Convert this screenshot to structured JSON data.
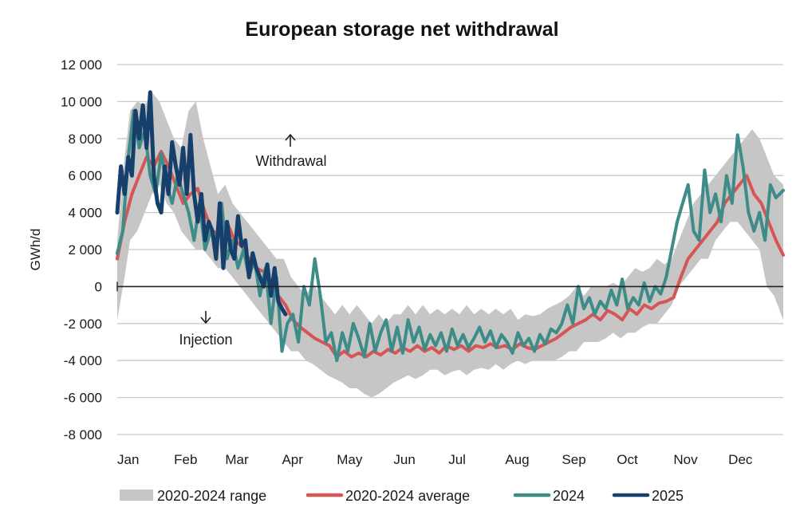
{
  "chart_data": {
    "type": "line",
    "title": "European storage net withdrawal",
    "ylabel": "GWh/d",
    "xlabel": "",
    "ylim": [
      -8000,
      12000
    ],
    "yticks": [
      12000,
      10000,
      8000,
      6000,
      4000,
      2000,
      0,
      -2000,
      -4000,
      -6000,
      -8000
    ],
    "ytick_labels": [
      "12 000",
      "10 000",
      "8 000",
      "6 000",
      "4 000",
      "2 000",
      "0",
      "-2 000",
      "-4 000",
      "-6 000",
      "-8 000"
    ],
    "x_unit": "day of year",
    "xlim": [
      1,
      365
    ],
    "months": [
      {
        "label": "Jan",
        "day": 1
      },
      {
        "label": "Feb",
        "day": 32
      },
      {
        "label": "Mar",
        "day": 60
      },
      {
        "label": "Apr",
        "day": 91
      },
      {
        "label": "May",
        "day": 121
      },
      {
        "label": "Jun",
        "day": 152
      },
      {
        "label": "Jul",
        "day": 182
      },
      {
        "label": "Aug",
        "day": 213
      },
      {
        "label": "Sep",
        "day": 244
      },
      {
        "label": "Oct",
        "day": 274
      },
      {
        "label": "Nov",
        "day": 305
      },
      {
        "label": "Dec",
        "day": 335
      }
    ],
    "grid": true,
    "legend_position": "bottom",
    "annotations": [
      {
        "text": "Withdrawal",
        "arrow": "up"
      },
      {
        "text": "Injection",
        "arrow": "down"
      }
    ],
    "range": {
      "name": "2020-2024 range",
      "color": "#c6c6c6",
      "x": [
        1,
        5,
        8,
        12,
        16,
        20,
        24,
        28,
        32,
        36,
        40,
        44,
        48,
        52,
        56,
        60,
        64,
        68,
        72,
        76,
        80,
        84,
        88,
        92,
        96,
        100,
        104,
        108,
        112,
        116,
        120,
        124,
        128,
        132,
        136,
        140,
        144,
        148,
        152,
        156,
        160,
        164,
        168,
        172,
        176,
        180,
        184,
        188,
        192,
        196,
        200,
        204,
        208,
        212,
        216,
        220,
        224,
        228,
        232,
        236,
        240,
        244,
        248,
        252,
        256,
        260,
        264,
        268,
        272,
        276,
        280,
        284,
        288,
        292,
        296,
        300,
        304,
        308,
        312,
        316,
        320,
        324,
        328,
        332,
        336,
        340,
        344,
        348,
        352,
        356,
        360,
        365
      ],
      "low": [
        -1800,
        500,
        2500,
        3000,
        4000,
        5000,
        5500,
        4500,
        4000,
        3000,
        2500,
        2000,
        2000,
        1500,
        1000,
        1000,
        500,
        0,
        -500,
        -1000,
        -1500,
        -2000,
        -2500,
        -3000,
        -3500,
        -3500,
        -4000,
        -4200,
        -4500,
        -4800,
        -5000,
        -5200,
        -5500,
        -5500,
        -5800,
        -6000,
        -5800,
        -5500,
        -5200,
        -5000,
        -4800,
        -5000,
        -4800,
        -4500,
        -4500,
        -4800,
        -4600,
        -4500,
        -4800,
        -4500,
        -4400,
        -4500,
        -4200,
        -4500,
        -4200,
        -4000,
        -4200,
        -4000,
        -4000,
        -4000,
        -4000,
        -3800,
        -3500,
        -3500,
        -3000,
        -3000,
        -3000,
        -2800,
        -2500,
        -2800,
        -2500,
        -2500,
        -2200,
        -2000,
        -2000,
        -1500,
        -1000,
        0,
        500,
        1000,
        1500,
        1500,
        2500,
        3000,
        3500,
        3500,
        3000,
        2500,
        2000,
        0,
        -500,
        -1800
      ],
      "high": [
        2500,
        7000,
        9500,
        10000,
        9800,
        10500,
        10000,
        9000,
        8000,
        7500,
        9500,
        10000,
        8000,
        6500,
        5000,
        5500,
        4500,
        4000,
        3500,
        3000,
        2500,
        2000,
        1500,
        1500,
        500,
        0,
        -500,
        200,
        -500,
        -1000,
        -1500,
        -1000,
        -1500,
        -1000,
        -1500,
        -2000,
        -1500,
        -2000,
        -1500,
        -1500,
        -1000,
        -1500,
        -1000,
        -1500,
        -1200,
        -1500,
        -1200,
        -1500,
        -1000,
        -1500,
        -1200,
        -1500,
        -1200,
        -1500,
        -1200,
        -1800,
        -1500,
        -1600,
        -1500,
        -1200,
        -1000,
        -800,
        -500,
        0,
        -500,
        0,
        0,
        0,
        200,
        0,
        500,
        1000,
        800,
        1000,
        1500,
        1200,
        1500,
        2500,
        3500,
        4500,
        5000,
        5500,
        6000,
        6500,
        7000,
        7500,
        8000,
        8500,
        8000,
        7000,
        6000,
        5500
      ]
    },
    "series": [
      {
        "name": "2020-2024 average",
        "color": "#d65555",
        "width": 4,
        "x": [
          1,
          5,
          9,
          13,
          17,
          21,
          25,
          29,
          33,
          37,
          41,
          45,
          49,
          53,
          57,
          61,
          65,
          69,
          73,
          77,
          81,
          85,
          89,
          93,
          97,
          101,
          105,
          109,
          113,
          117,
          121,
          125,
          129,
          133,
          137,
          141,
          145,
          149,
          153,
          157,
          161,
          165,
          169,
          173,
          177,
          181,
          185,
          189,
          193,
          197,
          201,
          205,
          209,
          213,
          217,
          221,
          225,
          229,
          233,
          237,
          241,
          245,
          249,
          253,
          257,
          261,
          265,
          269,
          273,
          277,
          281,
          285,
          289,
          293,
          297,
          301,
          305,
          309,
          313,
          317,
          321,
          325,
          329,
          333,
          337,
          341,
          345,
          349,
          353,
          357,
          361,
          365
        ],
        "values": [
          1500,
          3500,
          5000,
          6000,
          7000,
          6500,
          7300,
          6500,
          5500,
          4500,
          5000,
          5300,
          4000,
          3000,
          2800,
          3500,
          2500,
          2200,
          1500,
          1000,
          800,
          200,
          -500,
          -1000,
          -1800,
          -2200,
          -2500,
          -2800,
          -3000,
          -3200,
          -3800,
          -3500,
          -3800,
          -3600,
          -3800,
          -3500,
          -3700,
          -3400,
          -3600,
          -3300,
          -3500,
          -3200,
          -3500,
          -3300,
          -3600,
          -3200,
          -3400,
          -3200,
          -3500,
          -3200,
          -3300,
          -3100,
          -3300,
          -3200,
          -3400,
          -3100,
          -3300,
          -3400,
          -3200,
          -3000,
          -2800,
          -2500,
          -2200,
          -2000,
          -1800,
          -1500,
          -1800,
          -1300,
          -1500,
          -1800,
          -1200,
          -1500,
          -1000,
          -1200,
          -900,
          -800,
          -600,
          500,
          1500,
          2000,
          2500,
          3000,
          3500,
          4500,
          5000,
          5500,
          6000,
          5000,
          4500,
          3500,
          2500,
          1700
        ]
      },
      {
        "name": "2024",
        "color": "#3d8c87",
        "width": 4,
        "x": [
          1,
          4,
          7,
          10,
          13,
          16,
          19,
          22,
          25,
          28,
          31,
          34,
          37,
          40,
          43,
          46,
          49,
          52,
          55,
          58,
          61,
          64,
          67,
          70,
          73,
          76,
          79,
          82,
          85,
          88,
          91,
          94,
          97,
          100,
          103,
          106,
          109,
          112,
          115,
          118,
          121,
          124,
          127,
          130,
          133,
          136,
          139,
          142,
          145,
          148,
          151,
          154,
          157,
          160,
          163,
          166,
          169,
          172,
          175,
          178,
          181,
          184,
          187,
          190,
          193,
          196,
          199,
          202,
          205,
          208,
          211,
          214,
          217,
          220,
          223,
          226,
          229,
          232,
          235,
          238,
          241,
          244,
          247,
          250,
          253,
          256,
          259,
          262,
          265,
          268,
          271,
          274,
          277,
          280,
          283,
          286,
          289,
          292,
          295,
          298,
          301,
          304,
          307,
          310,
          313,
          316,
          319,
          322,
          325,
          328,
          331,
          334,
          337,
          340,
          343,
          346,
          349,
          352,
          355,
          358,
          361,
          365
        ],
        "values": [
          1800,
          3000,
          7000,
          9500,
          7500,
          8500,
          6000,
          5000,
          7200,
          5500,
          4500,
          6000,
          5000,
          4000,
          2500,
          4500,
          2000,
          3000,
          2500,
          4500,
          1500,
          2500,
          1000,
          2000,
          500,
          1500,
          -500,
          1000,
          -2000,
          500,
          -3500,
          -2000,
          -1500,
          -3000,
          0,
          -1000,
          1500,
          -500,
          -3000,
          -2500,
          -4000,
          -2500,
          -3500,
          -2000,
          -2800,
          -3800,
          -2000,
          -3500,
          -2500,
          -1800,
          -3500,
          -2200,
          -3600,
          -1800,
          -3000,
          -2200,
          -3400,
          -2600,
          -3200,
          -2500,
          -3500,
          -2300,
          -3200,
          -2600,
          -3300,
          -2800,
          -2200,
          -3000,
          -2400,
          -3300,
          -2600,
          -3000,
          -3600,
          -2500,
          -3200,
          -2800,
          -3500,
          -2600,
          -3100,
          -2300,
          -2500,
          -2000,
          -1000,
          -2000,
          0,
          -1200,
          -600,
          -1500,
          -800,
          -1200,
          -200,
          -1000,
          400,
          -1200,
          -600,
          -1000,
          200,
          -800,
          0,
          -400,
          500,
          2000,
          3500,
          4500,
          5500,
          3000,
          2500,
          6300,
          4000,
          5000,
          3500,
          6000,
          4500,
          8200,
          6500,
          4000,
          3000,
          4000,
          2500,
          5500,
          4800,
          5200
        ],
        "end_x": 365
      },
      {
        "name": "2025",
        "color": "#16406b",
        "width": 5,
        "x": [
          1,
          3,
          5,
          7,
          9,
          11,
          13,
          15,
          17,
          19,
          21,
          23,
          25,
          27,
          29,
          31,
          33,
          35,
          37,
          39,
          41,
          43,
          45,
          47,
          49,
          51,
          53,
          55,
          57,
          59,
          61,
          63,
          65,
          67,
          69,
          71,
          73,
          75,
          77,
          79,
          81,
          83,
          85,
          87,
          89,
          91,
          93
        ],
        "values": [
          4000,
          6500,
          5000,
          7000,
          6000,
          9500,
          8000,
          9800,
          7500,
          10500,
          6000,
          4500,
          4000,
          6500,
          5000,
          7800,
          6500,
          5500,
          7500,
          5000,
          8200,
          5000,
          3500,
          5000,
          2500,
          3500,
          3000,
          1500,
          4500,
          1000,
          3500,
          2000,
          1500,
          3800,
          2200,
          2500,
          500,
          1800,
          1000,
          500,
          0,
          1200,
          -500,
          1000,
          -800,
          -1200,
          -1500
        ]
      }
    ]
  }
}
